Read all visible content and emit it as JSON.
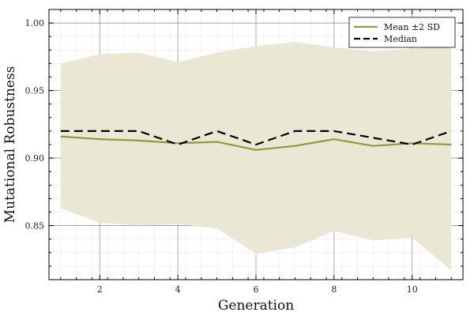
{
  "chart_data": {
    "type": "line",
    "title": "",
    "xlabel": "Generation",
    "ylabel": "Mutational Robustness",
    "xlim": [
      0.7,
      11.3
    ],
    "ylim": [
      0.81,
      1.01
    ],
    "xticks": [
      2,
      4,
      6,
      8,
      10
    ],
    "xtick_labels": [
      "2",
      "4",
      "6",
      "8",
      "10"
    ],
    "yticks": [
      0.85,
      0.9,
      0.95,
      1.0
    ],
    "ytick_labels": [
      "0.85",
      "0.90",
      "0.95",
      "1.00"
    ],
    "grid": true,
    "legend_position": "top-right",
    "x": [
      1,
      2,
      3,
      4,
      5,
      6,
      7,
      8,
      9,
      10,
      11
    ],
    "series": [
      {
        "name": "Mean ±2 SD",
        "style": "solid",
        "color": "#8f9a3c",
        "band_color": "#e9e7d3",
        "values": [
          0.916,
          0.914,
          0.913,
          0.911,
          0.912,
          0.906,
          0.909,
          0.914,
          0.909,
          0.911,
          0.91
        ],
        "lower": [
          0.863,
          0.852,
          0.85,
          0.851,
          0.848,
          0.829,
          0.834,
          0.846,
          0.839,
          0.841,
          0.817
        ],
        "upper": [
          0.97,
          0.977,
          0.978,
          0.971,
          0.978,
          0.983,
          0.986,
          0.982,
          0.979,
          0.981,
          0.983
        ]
      },
      {
        "name": "Median",
        "style": "dashed",
        "color": "#000000",
        "values": [
          0.92,
          0.92,
          0.92,
          0.91,
          0.92,
          0.91,
          0.92,
          0.92,
          0.915,
          0.91,
          0.92
        ]
      }
    ]
  }
}
